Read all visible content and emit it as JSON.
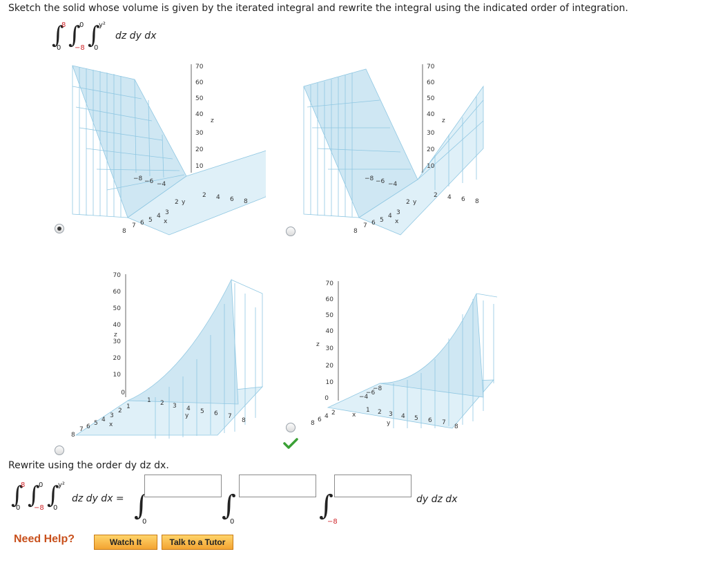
{
  "question": {
    "prompt": "Sketch the solid whose volume is given by the iterated integral and rewrite the integral using the indicated order of integration.",
    "integral": {
      "outer_upper": "8",
      "outer_lower": "0",
      "middle_upper": "0",
      "middle_lower": "−8",
      "inner_upper": "y²",
      "inner_lower": "0",
      "differentials": "dz dy dx"
    }
  },
  "choices": [
    {
      "id": "A",
      "selected": true,
      "correct_mark": false
    },
    {
      "id": "B",
      "selected": false,
      "correct_mark": false
    },
    {
      "id": "C",
      "selected": false,
      "correct_mark": false
    },
    {
      "id": "D",
      "selected": false,
      "correct_mark": true
    }
  ],
  "graph_labels": {
    "z_ticks": [
      "70",
      "60",
      "50",
      "40",
      "30",
      "20",
      "10"
    ],
    "z_ticks_c": [
      "70",
      "60",
      "50",
      "40",
      "30",
      "20",
      "10",
      "0"
    ],
    "axis_z": "z",
    "axis_y": "y",
    "axis_x": "x",
    "neg_y_ticks": [
      "−8",
      "−6",
      "−4"
    ],
    "pos_y_ticks": [
      "2",
      "4",
      "6",
      "8"
    ],
    "x_ticks": [
      "8",
      "7",
      "6",
      "5",
      "4",
      "3",
      "2"
    ],
    "y_ticks_c": [
      "1",
      "2",
      "3",
      "4",
      "5",
      "6",
      "7",
      "8"
    ],
    "x_ticks_c": [
      "8",
      "7",
      "6",
      "5",
      "4",
      "3",
      "2",
      "1"
    ],
    "x_ticks_d": [
      "8",
      "6",
      "4",
      "2"
    ],
    "d_neg_ticks": [
      "−4",
      "−6",
      "−8"
    ]
  },
  "rewrite": {
    "instruction": "Rewrite using the order dy dz dx.",
    "lhs_differentials": "dz dy dx =",
    "rhs_outer_lower": "0",
    "rhs_middle_lower": "0",
    "rhs_inner_lower": "−8",
    "rhs_differentials": "dy dz dx",
    "box1": "",
    "box2": "",
    "box3": ""
  },
  "help": {
    "label": "Need Help?",
    "watch_it": "Watch It",
    "talk_to_tutor": "Talk to a Tutor"
  },
  "colors": {
    "mesh": "#8fc7e2",
    "mesh_dark": "#6db0d3",
    "accent_orange": "#f3a432",
    "need_help": "#c8501c",
    "check": "#3aa035"
  }
}
